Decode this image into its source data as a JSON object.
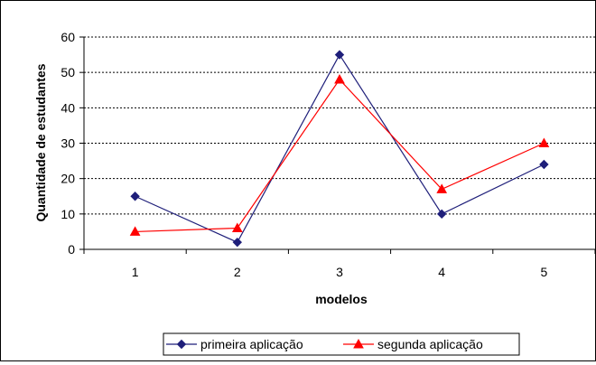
{
  "chart_data": {
    "type": "line",
    "categories": [
      "1",
      "2",
      "3",
      "4",
      "5"
    ],
    "series": [
      {
        "name": "primeira aplicação",
        "values": [
          15,
          2,
          55,
          10,
          24
        ],
        "color": "#1f1f7a",
        "marker": "diamond"
      },
      {
        "name": "segunda aplicação",
        "values": [
          5,
          6,
          48,
          17,
          30
        ],
        "color": "#ff0000",
        "marker": "triangle"
      }
    ],
    "title": "",
    "xlabel": "modelos",
    "ylabel": "Quantidade de estudantes",
    "ylim": [
      0,
      60
    ],
    "yticks": [
      "0",
      "10",
      "20",
      "30",
      "40",
      "50",
      "60"
    ],
    "grid": "horizontal-dashed",
    "legend_position": "bottom"
  }
}
